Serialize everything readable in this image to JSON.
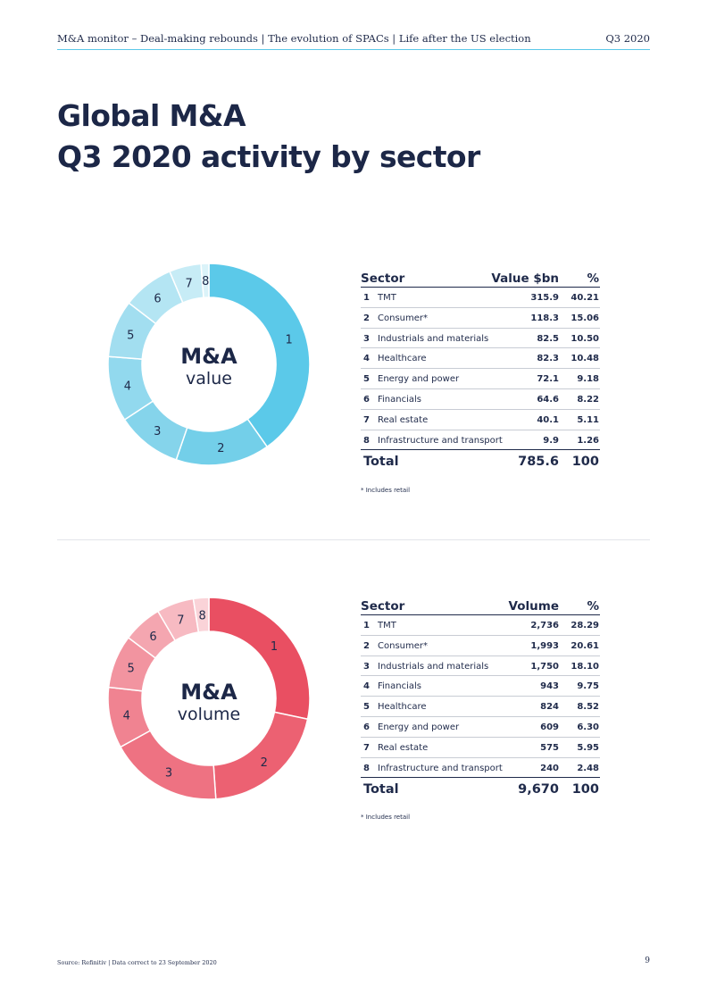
{
  "header": {
    "left": "M&A monitor – Deal-making rebounds | The evolution of SPACs | Life after the US election",
    "right": "Q3 2020"
  },
  "title": {
    "line1": "Global M&A",
    "line2": "Q3 2020 activity by sector"
  },
  "value_section": {
    "center_line1": "M&A",
    "center_line2": "value",
    "col_sector": "Sector",
    "col_value": "Value $bn",
    "col_pct": "%",
    "total_label": "Total",
    "total_value": "785.6",
    "total_pct": "100",
    "note": "* Includes retail"
  },
  "volume_section": {
    "center_line1": "M&A",
    "center_line2": "volume",
    "col_sector": "Sector",
    "col_value": "Volume",
    "col_pct": "%",
    "total_label": "Total",
    "total_value": "9,670",
    "total_pct": "100",
    "note": "* Includes retail"
  },
  "colors": {
    "value_slices": [
      "#5bc9e9",
      "#73cfe9",
      "#85d4eb",
      "#92d9ee",
      "#a2def0",
      "#b4e5f3",
      "#c7ecf6",
      "#dbf3f9"
    ],
    "volume_slices": [
      "#e94f62",
      "#ec6172",
      "#ee7282",
      "#f08391",
      "#f294a0",
      "#f4a6b0",
      "#f7bac2",
      "#fad3d8"
    ]
  },
  "chart_data": [
    {
      "type": "pie",
      "variant": "donut",
      "labels": [
        "1",
        "2",
        "3",
        "4",
        "5",
        "6",
        "7",
        "8"
      ],
      "categories": [
        "TMT",
        "Consumer*",
        "Industrials and materials",
        "Healthcare",
        "Energy and power",
        "Financials",
        "Real estate",
        "Infrastructure and transport"
      ],
      "values_display": [
        "315.9",
        "118.3",
        "82.5",
        "82.3",
        "72.1",
        "64.6",
        "40.1",
        "9.9"
      ],
      "values": [
        315.9,
        118.3,
        82.5,
        82.3,
        72.1,
        64.6,
        40.1,
        9.9
      ],
      "percent_display": [
        "40.21",
        "15.06",
        "10.50",
        "10.48",
        "9.18",
        "8.22",
        "5.11",
        "1.26"
      ],
      "percent": [
        40.21,
        15.06,
        10.5,
        10.48,
        9.18,
        8.22,
        5.11,
        1.26
      ]
    },
    {
      "type": "pie",
      "variant": "donut",
      "labels": [
        "1",
        "2",
        "3",
        "4",
        "5",
        "6",
        "7",
        "8"
      ],
      "categories": [
        "TMT",
        "Consumer*",
        "Industrials and materials",
        "Financials",
        "Healthcare",
        "Energy and power",
        "Real estate",
        "Infrastructure and transport"
      ],
      "values_display": [
        "2,736",
        "1,993",
        "1,750",
        "943",
        "824",
        "609",
        "575",
        "240"
      ],
      "values": [
        2736,
        1993,
        1750,
        943,
        824,
        609,
        575,
        240
      ],
      "percent_display": [
        "28.29",
        "20.61",
        "18.10",
        "9.75",
        "8.52",
        "6.30",
        "5.95",
        "2.48"
      ],
      "percent": [
        28.29,
        20.61,
        18.1,
        9.75,
        8.52,
        6.3,
        5.95,
        2.48
      ]
    }
  ],
  "footer": {
    "left": "Source: Refinitiv  |  Data correct to 23 September 2020",
    "page": "9"
  }
}
